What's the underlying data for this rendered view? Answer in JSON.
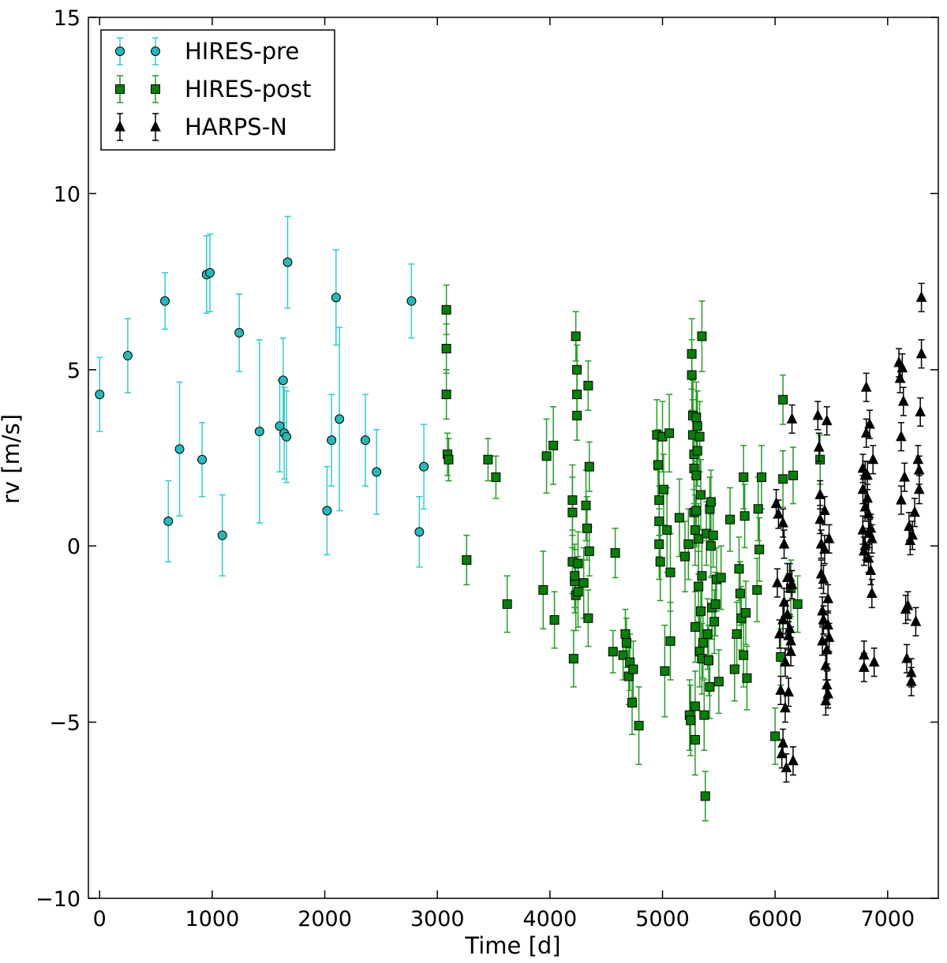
{
  "chart_data": {
    "type": "scatter",
    "title": "",
    "xlabel": "Time [d]",
    "ylabel": "rv [m/s]",
    "xlim": [
      -100,
      7450
    ],
    "ylim": [
      -10,
      15
    ],
    "xticks": [
      0,
      1000,
      2000,
      3000,
      4000,
      5000,
      6000,
      7000
    ],
    "yticks": [
      -10,
      -5,
      0,
      5,
      10,
      15
    ],
    "xtick_labels": [
      "0",
      "1000",
      "2000",
      "3000",
      "4000",
      "5000",
      "6000",
      "7000"
    ],
    "ytick_labels": [
      "−10",
      "−5",
      "0",
      "5",
      "10",
      "15"
    ],
    "grid": false,
    "legend_position": "top-left",
    "series": [
      {
        "name": "HIRES-pre",
        "marker": "circle",
        "color": "#2ab7b7",
        "errcolor": "#33cccc",
        "points": [
          [
            0,
            4.3,
            1.05
          ],
          [
            250,
            5.4,
            1.05
          ],
          [
            580,
            6.95,
            0.8
          ],
          [
            610,
            0.7,
            1.15
          ],
          [
            710,
            2.75,
            1.9
          ],
          [
            910,
            2.45,
            1.05
          ],
          [
            950,
            7.7,
            1.1
          ],
          [
            980,
            7.75,
            1.1
          ],
          [
            1090,
            0.3,
            1.15
          ],
          [
            1240,
            6.05,
            1.1
          ],
          [
            1420,
            3.25,
            2.6
          ],
          [
            1600,
            3.4,
            1.3
          ],
          [
            1630,
            4.7,
            1.2
          ],
          [
            1640,
            3.2,
            1.3
          ],
          [
            1670,
            8.05,
            1.3
          ],
          [
            1660,
            3.1,
            1.3
          ],
          [
            2020,
            1.0,
            1.25
          ],
          [
            2060,
            3.0,
            1.3
          ],
          [
            2100,
            7.05,
            1.35
          ],
          [
            2130,
            3.6,
            2.6
          ],
          [
            2360,
            3.0,
            1.3
          ],
          [
            2460,
            2.1,
            1.2
          ],
          [
            2770,
            6.95,
            1.05
          ],
          [
            2840,
            0.4,
            1.0
          ],
          [
            2880,
            2.25,
            1.2
          ]
        ]
      },
      {
        "name": "HIRES-post",
        "marker": "square",
        "color": "#0a7d0a",
        "errcolor": "#279b27",
        "points": [
          [
            3080,
            6.7,
            0.7
          ],
          [
            3080,
            5.6,
            0.7
          ],
          [
            3080,
            4.3,
            0.7
          ],
          [
            3090,
            2.6,
            0.6
          ],
          [
            3100,
            2.45,
            0.6
          ],
          [
            3260,
            -0.4,
            0.7
          ],
          [
            3450,
            2.45,
            0.6
          ],
          [
            3520,
            1.95,
            0.6
          ],
          [
            3620,
            -1.65,
            0.8
          ],
          [
            3940,
            -1.25,
            1.1
          ],
          [
            3970,
            2.55,
            1.05
          ],
          [
            4030,
            2.85,
            1.1
          ],
          [
            4040,
            -2.1,
            0.8
          ],
          [
            4200,
            1.3,
            1.0
          ],
          [
            4200,
            0.95,
            1.0
          ],
          [
            4200,
            -0.45,
            0.9
          ],
          [
            4210,
            -3.2,
            0.8
          ],
          [
            4220,
            -1.0,
            0.9
          ],
          [
            4220,
            -0.85,
            0.9
          ],
          [
            4230,
            -1.4,
            1.0
          ],
          [
            4230,
            5.95,
            0.7
          ],
          [
            4240,
            5.0,
            0.7
          ],
          [
            4240,
            4.3,
            0.7
          ],
          [
            4240,
            3.7,
            0.7
          ],
          [
            4250,
            -0.5,
            0.9
          ],
          [
            4250,
            -1.3,
            1.0
          ],
          [
            4300,
            -1.05,
            1.0
          ],
          [
            4320,
            1.15,
            1.0
          ],
          [
            4330,
            0.5,
            0.9
          ],
          [
            4340,
            -2.05,
            0.8
          ],
          [
            4340,
            4.55,
            0.7
          ],
          [
            4350,
            2.25,
            0.7
          ],
          [
            4350,
            -0.15,
            0.7
          ],
          [
            4560,
            -3.0,
            0.6
          ],
          [
            4580,
            -0.2,
            0.7
          ],
          [
            4650,
            -3.1,
            0.7
          ],
          [
            4670,
            -2.5,
            0.7
          ],
          [
            4680,
            -2.75,
            0.7
          ],
          [
            4700,
            -3.7,
            0.8
          ],
          [
            4710,
            -3.3,
            0.8
          ],
          [
            4730,
            -4.45,
            0.9
          ],
          [
            4740,
            -3.5,
            0.8
          ],
          [
            4790,
            -5.1,
            1.1
          ],
          [
            4950,
            3.15,
            1.0
          ],
          [
            4960,
            2.3,
            1.0
          ],
          [
            4970,
            1.3,
            1.0
          ],
          [
            4970,
            0.7,
            1.0
          ],
          [
            4970,
            0.05,
            1.0
          ],
          [
            4980,
            -0.45,
            1.1
          ],
          [
            5000,
            3.1,
            1.0
          ],
          [
            5010,
            1.6,
            1.0
          ],
          [
            5020,
            -3.55,
            1.3
          ],
          [
            5040,
            0.45,
            1.2
          ],
          [
            5060,
            3.2,
            1.1
          ],
          [
            5070,
            -0.75,
            1.1
          ],
          [
            5070,
            -2.7,
            1.1
          ],
          [
            5150,
            0.8,
            1.1
          ],
          [
            5200,
            -0.3,
            1.0
          ],
          [
            5230,
            0.05,
            1.0
          ],
          [
            5240,
            -4.8,
            1.0
          ],
          [
            5250,
            -4.95,
            1.0
          ],
          [
            5260,
            4.85,
            1.0
          ],
          [
            5260,
            5.45,
            1.0
          ],
          [
            5270,
            3.7,
            1.0
          ],
          [
            5270,
            3.15,
            1.0
          ],
          [
            5280,
            2.6,
            1.0
          ],
          [
            5280,
            2.2,
            1.0
          ],
          [
            5280,
            0.95,
            1.0
          ],
          [
            5290,
            -5.5,
            1.0
          ],
          [
            5290,
            -2.3,
            1.0
          ],
          [
            5290,
            0.45,
            1.0
          ],
          [
            5290,
            -4.55,
            1.0
          ],
          [
            5300,
            3.65,
            1.0
          ],
          [
            5300,
            2.0,
            1.0
          ],
          [
            5300,
            1.0,
            1.0
          ],
          [
            5310,
            3.4,
            1.0
          ],
          [
            5310,
            2.7,
            1.0
          ],
          [
            5320,
            0.2,
            1.0
          ],
          [
            5320,
            -1.15,
            1.0
          ],
          [
            5330,
            3.1,
            1.0
          ],
          [
            5330,
            -3.0,
            1.0
          ],
          [
            5340,
            1.45,
            1.0
          ],
          [
            5340,
            -1.85,
            1.0
          ],
          [
            5350,
            5.95,
            1.0
          ],
          [
            5350,
            -0.85,
            1.0
          ],
          [
            5350,
            -3.2,
            1.0
          ],
          [
            5360,
            -2.75,
            1.0
          ],
          [
            5370,
            -4.8,
            1.0
          ],
          [
            5380,
            -7.1,
            0.7
          ],
          [
            5390,
            0.35,
            0.9
          ],
          [
            5400,
            -2.5,
            1.0
          ],
          [
            5410,
            -3.25,
            1.0
          ],
          [
            5420,
            -4.0,
            0.9
          ],
          [
            5420,
            1.05,
            0.9
          ],
          [
            5430,
            1.25,
            0.9
          ],
          [
            5430,
            0.0,
            0.9
          ],
          [
            5440,
            -1.75,
            0.9
          ],
          [
            5450,
            0.3,
            0.9
          ],
          [
            5460,
            -2.15,
            0.9
          ],
          [
            5470,
            -1.65,
            0.9
          ],
          [
            5480,
            -0.95,
            0.9
          ],
          [
            5500,
            -3.85,
            0.9
          ],
          [
            5520,
            -0.9,
            0.9
          ],
          [
            5600,
            0.75,
            0.9
          ],
          [
            5640,
            -3.5,
            0.9
          ],
          [
            5660,
            -2.5,
            0.9
          ],
          [
            5680,
            -0.65,
            0.9
          ],
          [
            5690,
            -1.35,
            0.9
          ],
          [
            5700,
            -2.05,
            0.9
          ],
          [
            5720,
            1.95,
            0.9
          ],
          [
            5720,
            -3.1,
            0.9
          ],
          [
            5730,
            0.85,
            0.9
          ],
          [
            5740,
            -1.9,
            0.9
          ],
          [
            5750,
            -3.75,
            0.9
          ],
          [
            5840,
            -1.25,
            0.9
          ],
          [
            5850,
            1.05,
            0.9
          ],
          [
            5860,
            -0.1,
            0.9
          ],
          [
            5880,
            1.95,
            0.9
          ],
          [
            6000,
            -5.4,
            0.8
          ],
          [
            6050,
            -3.15,
            0.8
          ],
          [
            6070,
            4.15,
            0.7
          ],
          [
            6070,
            1.9,
            0.8
          ],
          [
            6140,
            -1.2,
            0.8
          ],
          [
            6160,
            2.0,
            0.8
          ],
          [
            6200,
            -1.65,
            0.8
          ],
          [
            6400,
            2.45,
            0.7
          ]
        ]
      },
      {
        "name": "HARPS-N",
        "marker": "triangle",
        "color": "#000000",
        "errcolor": "#000000",
        "points": [
          [
            6010,
            1.2,
            0.4
          ],
          [
            6020,
            -1.05,
            0.4
          ],
          [
            6030,
            0.9,
            0.4
          ],
          [
            6040,
            -2.5,
            0.4
          ],
          [
            6050,
            -4.1,
            0.4
          ],
          [
            6060,
            -5.9,
            0.4
          ],
          [
            6070,
            -5.6,
            0.4
          ],
          [
            6070,
            -2.1,
            0.4
          ],
          [
            6070,
            0.65,
            0.4
          ],
          [
            6080,
            0.05,
            0.4
          ],
          [
            6080,
            -1.6,
            0.4
          ],
          [
            6090,
            -3.3,
            0.4
          ],
          [
            6090,
            -4.6,
            0.4
          ],
          [
            6100,
            -6.3,
            0.4
          ],
          [
            6110,
            -1.95,
            0.4
          ],
          [
            6110,
            -0.9,
            0.4
          ],
          [
            6120,
            -2.55,
            0.4
          ],
          [
            6120,
            -4.15,
            0.4
          ],
          [
            6130,
            -0.9,
            0.4
          ],
          [
            6130,
            -2.35,
            0.4
          ],
          [
            6140,
            -3.0,
            0.4
          ],
          [
            6140,
            -2.7,
            0.4
          ],
          [
            6150,
            3.6,
            0.4
          ],
          [
            6150,
            -1.1,
            0.4
          ],
          [
            6160,
            -6.1,
            0.4
          ],
          [
            6380,
            3.7,
            0.4
          ],
          [
            6390,
            2.8,
            0.4
          ],
          [
            6400,
            1.45,
            0.4
          ],
          [
            6400,
            0.75,
            0.4
          ],
          [
            6410,
            0.05,
            0.4
          ],
          [
            6410,
            -0.8,
            0.4
          ],
          [
            6420,
            -1.85,
            0.4
          ],
          [
            6420,
            -2.7,
            0.4
          ],
          [
            6430,
            -0.95,
            0.4
          ],
          [
            6430,
            -2.1,
            0.4
          ],
          [
            6440,
            1.0,
            0.4
          ],
          [
            6440,
            -0.1,
            0.4
          ],
          [
            6450,
            -3.4,
            0.4
          ],
          [
            6450,
            -4.4,
            0.4
          ],
          [
            6460,
            3.55,
            0.4
          ],
          [
            6460,
            -3.95,
            0.4
          ],
          [
            6460,
            -2.95,
            0.4
          ],
          [
            6470,
            -2.25,
            0.4
          ],
          [
            6470,
            -4.2,
            0.4
          ],
          [
            6470,
            -1.5,
            0.4
          ],
          [
            6480,
            0.2,
            0.4
          ],
          [
            6480,
            -2.6,
            0.4
          ],
          [
            6780,
            0.45,
            0.4
          ],
          [
            6780,
            1.6,
            0.4
          ],
          [
            6780,
            2.2,
            0.4
          ],
          [
            6790,
            -3.1,
            0.4
          ],
          [
            6790,
            -3.45,
            0.4
          ],
          [
            6790,
            -0.15,
            0.4
          ],
          [
            6800,
            2.0,
            0.4
          ],
          [
            6800,
            1.1,
            0.4
          ],
          [
            6800,
            0.0,
            0.4
          ],
          [
            6810,
            4.5,
            0.4
          ],
          [
            6810,
            3.2,
            0.4
          ],
          [
            6820,
            2.0,
            0.4
          ],
          [
            6820,
            1.35,
            0.4
          ],
          [
            6830,
            0.9,
            0.4
          ],
          [
            6830,
            -0.35,
            0.4
          ],
          [
            6840,
            3.45,
            0.4
          ],
          [
            6840,
            0.35,
            0.4
          ],
          [
            6850,
            0.5,
            0.4
          ],
          [
            6850,
            -0.7,
            0.4
          ],
          [
            6860,
            0.2,
            0.4
          ],
          [
            6860,
            -1.35,
            0.4
          ],
          [
            6870,
            2.45,
            0.4
          ],
          [
            6880,
            -3.3,
            0.4
          ],
          [
            7100,
            5.2,
            0.4
          ],
          [
            7110,
            4.75,
            0.4
          ],
          [
            7120,
            3.1,
            0.4
          ],
          [
            7120,
            1.3,
            0.4
          ],
          [
            7130,
            5.05,
            0.4
          ],
          [
            7140,
            4.1,
            0.4
          ],
          [
            7150,
            1.95,
            0.4
          ],
          [
            7160,
            -1.8,
            0.4
          ],
          [
            7170,
            -3.2,
            0.4
          ],
          [
            7180,
            -1.7,
            0.4
          ],
          [
            7190,
            0.55,
            0.4
          ],
          [
            7200,
            0.15,
            0.4
          ],
          [
            7210,
            -3.6,
            0.4
          ],
          [
            7210,
            -3.85,
            0.4
          ],
          [
            7220,
            0.3,
            0.4
          ],
          [
            7240,
            0.95,
            0.4
          ],
          [
            7250,
            -2.15,
            0.4
          ],
          [
            7270,
            2.45,
            0.4
          ],
          [
            7280,
            1.6,
            0.4
          ],
          [
            7280,
            2.15,
            0.4
          ],
          [
            7290,
            3.8,
            0.4
          ],
          [
            7300,
            5.45,
            0.4
          ],
          [
            7300,
            7.05,
            0.4
          ]
        ]
      }
    ]
  }
}
